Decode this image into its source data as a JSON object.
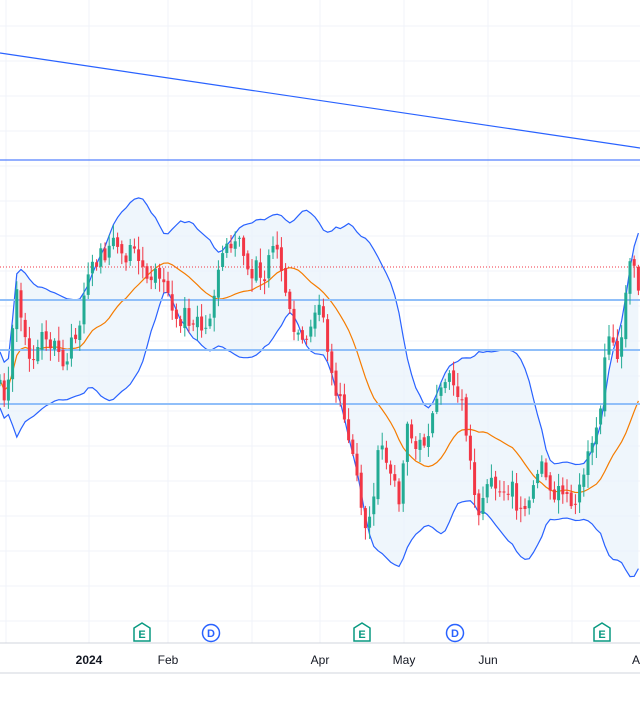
{
  "colors": {
    "up": "#22ab94",
    "down": "#f23645",
    "band_line": "#2962ff",
    "band_fill": "#e9f3fb",
    "basis": "#f57c00",
    "h_line": "#90bff9",
    "trend_line": "#2962ff",
    "ref_line": "#f23645",
    "grid": "#f0f3fa",
    "axis_line": "#d1d4dc",
    "earnings": "#089981",
    "dividend": "#2962ff"
  },
  "chart_data": {
    "type": "candlestick",
    "title": "",
    "xlabel": "",
    "ylabel": "",
    "grid": true,
    "x_axis_labels": [
      "2024",
      "Feb",
      "Apr",
      "May",
      "Jun",
      "A"
    ],
    "events": [
      {
        "type": "earnings",
        "letter": "E",
        "near": "Jan"
      },
      {
        "type": "dividend",
        "letter": "D",
        "near": "Feb"
      },
      {
        "type": "earnings",
        "letter": "E",
        "near": "Apr"
      },
      {
        "type": "dividend",
        "letter": "D",
        "near": "May"
      },
      {
        "type": "earnings",
        "letter": "E",
        "near": "Jul"
      }
    ],
    "indicator": "Bollinger Bands",
    "price_series_shape": [
      [
        0,
        380
      ],
      [
        4,
        400
      ],
      [
        8,
        390
      ],
      [
        12,
        340
      ],
      [
        16,
        285
      ],
      [
        20,
        310
      ],
      [
        24,
        340
      ],
      [
        28,
        350
      ],
      [
        32,
        360
      ],
      [
        36,
        355
      ],
      [
        40,
        340
      ],
      [
        44,
        330
      ],
      [
        48,
        340
      ],
      [
        52,
        350
      ],
      [
        56,
        345
      ],
      [
        60,
        355
      ],
      [
        64,
        375
      ],
      [
        68,
        355
      ],
      [
        72,
        340
      ],
      [
        76,
        338
      ],
      [
        80,
        325
      ],
      [
        84,
        300
      ],
      [
        88,
        282
      ],
      [
        92,
        255
      ],
      [
        96,
        262
      ],
      [
        100,
        250
      ],
      [
        104,
        268
      ],
      [
        108,
        240
      ],
      [
        112,
        238
      ],
      [
        116,
        250
      ],
      [
        120,
        245
      ],
      [
        124,
        262
      ],
      [
        128,
        258
      ],
      [
        132,
        240
      ],
      [
        136,
        262
      ],
      [
        140,
        250
      ],
      [
        144,
        275
      ],
      [
        148,
        285
      ],
      [
        152,
        278
      ],
      [
        156,
        270
      ],
      [
        160,
        285
      ],
      [
        164,
        278
      ],
      [
        168,
        295
      ],
      [
        172,
        312
      ],
      [
        176,
        325
      ],
      [
        180,
        322
      ],
      [
        184,
        310
      ],
      [
        188,
        318
      ],
      [
        192,
        328
      ],
      [
        196,
        318
      ],
      [
        200,
        325
      ],
      [
        204,
        335
      ],
      [
        208,
        322
      ],
      [
        212,
        308
      ],
      [
        216,
        282
      ],
      [
        220,
        270
      ],
      [
        224,
        250
      ],
      [
        228,
        242
      ],
      [
        232,
        258
      ],
      [
        236,
        245
      ],
      [
        240,
        238
      ],
      [
        244,
        255
      ],
      [
        248,
        268
      ],
      [
        252,
        272
      ],
      [
        256,
        262
      ],
      [
        260,
        278
      ],
      [
        264,
        285
      ],
      [
        268,
        260
      ],
      [
        272,
        240
      ],
      [
        276,
        245
      ],
      [
        280,
        262
      ],
      [
        284,
        290
      ],
      [
        288,
        305
      ],
      [
        292,
        322
      ],
      [
        296,
        335
      ],
      [
        300,
        340
      ],
      [
        304,
        345
      ],
      [
        308,
        330
      ],
      [
        312,
        318
      ],
      [
        316,
        302
      ],
      [
        320,
        298
      ],
      [
        324,
        315
      ],
      [
        328,
        352
      ],
      [
        332,
        372
      ],
      [
        336,
        395
      ],
      [
        340,
        402
      ],
      [
        344,
        420
      ],
      [
        348,
        440
      ],
      [
        352,
        455
      ],
      [
        356,
        470
      ],
      [
        360,
        498
      ],
      [
        364,
        522
      ],
      [
        368,
        530
      ],
      [
        372,
        505
      ],
      [
        376,
        472
      ],
      [
        380,
        442
      ],
      [
        384,
        452
      ],
      [
        388,
        468
      ],
      [
        392,
        478
      ],
      [
        396,
        490
      ],
      [
        400,
        500
      ],
      [
        404,
        455
      ],
      [
        408,
        412
      ],
      [
        412,
        440
      ],
      [
        416,
        450
      ],
      [
        420,
        445
      ],
      [
        424,
        442
      ],
      [
        428,
        432
      ],
      [
        432,
        418
      ],
      [
        436,
        408
      ],
      [
        440,
        395
      ],
      [
        444,
        384
      ],
      [
        448,
        368
      ],
      [
        452,
        375
      ],
      [
        456,
        395
      ],
      [
        460,
        388
      ],
      [
        464,
        420
      ],
      [
        468,
        440
      ],
      [
        472,
        482
      ],
      [
        476,
        512
      ],
      [
        480,
        525
      ],
      [
        484,
        498
      ],
      [
        488,
        480
      ],
      [
        492,
        472
      ],
      [
        496,
        485
      ],
      [
        500,
        498
      ],
      [
        504,
        492
      ],
      [
        508,
        502
      ],
      [
        512,
        482
      ],
      [
        516,
        510
      ],
      [
        520,
        515
      ],
      [
        524,
        512
      ],
      [
        528,
        508
      ],
      [
        532,
        495
      ],
      [
        536,
        475
      ],
      [
        540,
        462
      ],
      [
        544,
        472
      ],
      [
        548,
        492
      ],
      [
        552,
        502
      ],
      [
        556,
        495
      ],
      [
        560,
        490
      ],
      [
        564,
        498
      ],
      [
        568,
        500
      ],
      [
        572,
        508
      ],
      [
        576,
        505
      ],
      [
        580,
        490
      ],
      [
        584,
        470
      ],
      [
        588,
        452
      ],
      [
        592,
        440
      ],
      [
        596,
        432
      ],
      [
        600,
        410
      ],
      [
        604,
        360
      ],
      [
        608,
        332
      ],
      [
        612,
        342
      ],
      [
        616,
        355
      ],
      [
        620,
        372
      ],
      [
        624,
        300
      ],
      [
        628,
        272
      ],
      [
        632,
        262
      ],
      [
        636,
        280
      ],
      [
        640,
        305
      ]
    ]
  }
}
